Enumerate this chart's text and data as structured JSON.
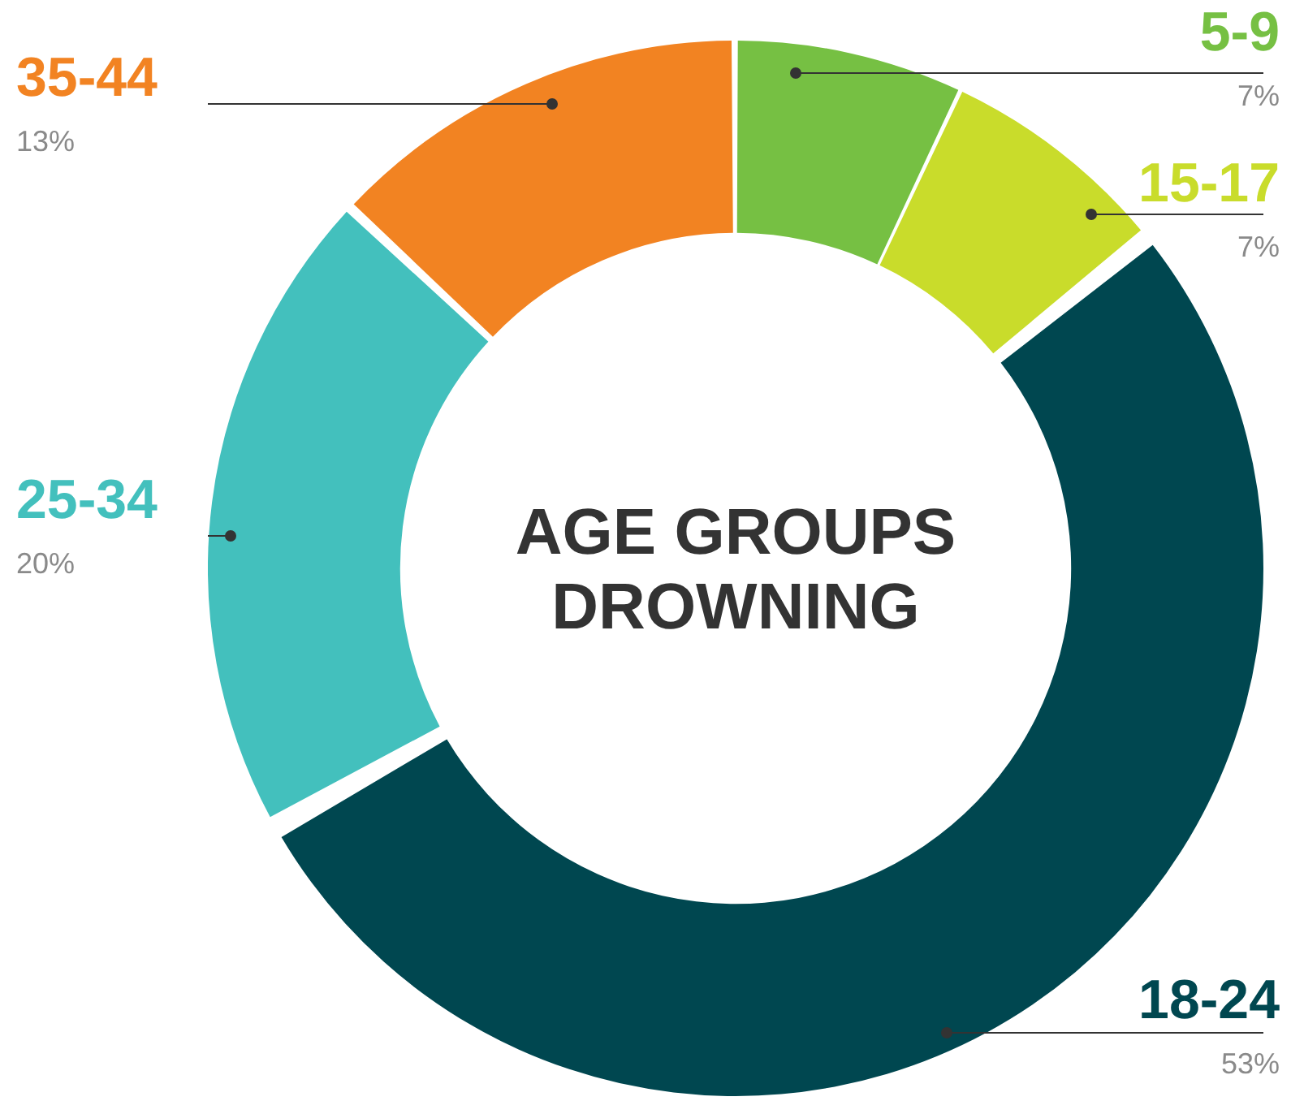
{
  "chart_data": {
    "type": "donut",
    "title": "AGE GROUPS DROWNING",
    "categories": [
      "5-9",
      "15-17",
      "18-24",
      "25-34",
      "35-44"
    ],
    "values": [
      7,
      7,
      53,
      20,
      13
    ],
    "value_labels": [
      "7%",
      "7%",
      "53%",
      "20%",
      "13%"
    ],
    "colors": [
      "#76c043",
      "#c9dc2b",
      "#004750",
      "#43c0bd",
      "#f28322"
    ],
    "legend": false
  }
}
